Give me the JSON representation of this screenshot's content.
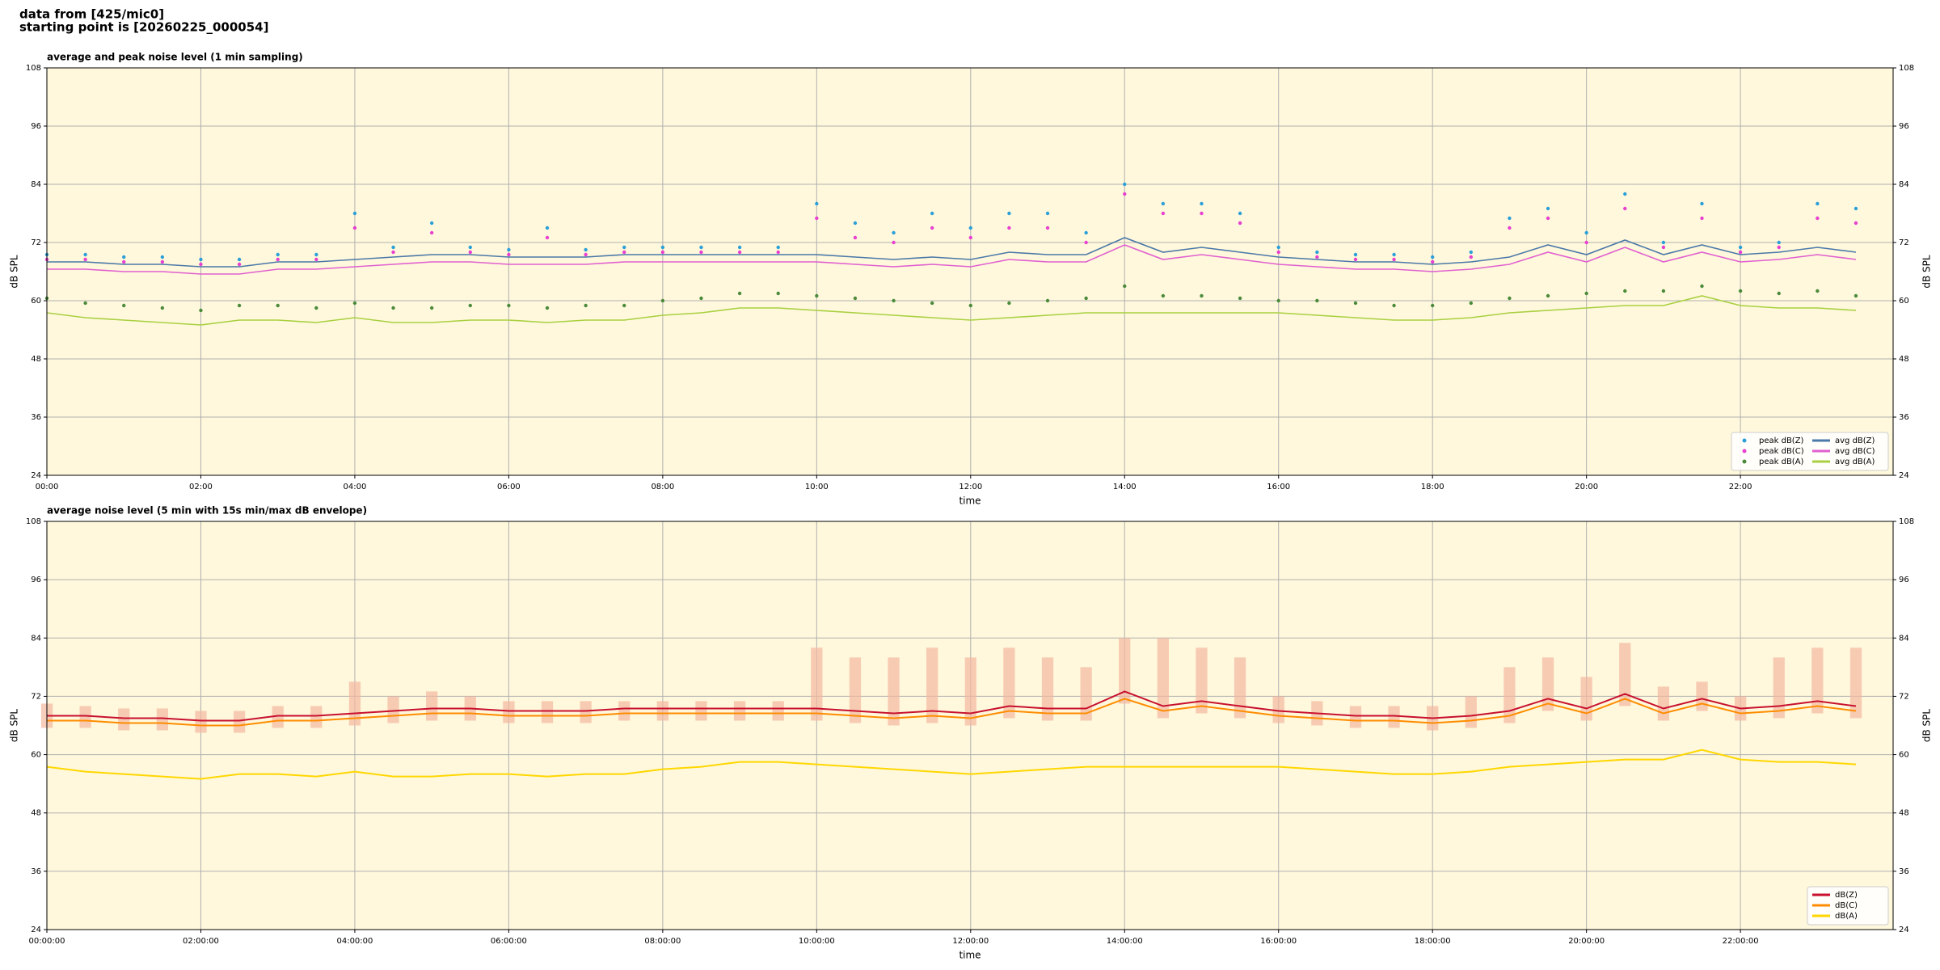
{
  "header": {
    "lines": [
      "data from [425/mic0]",
      "starting point is [20260225_000054]"
    ]
  },
  "chart_data": [
    {
      "type": "line",
      "title": "average and peak noise level (1 min sampling)",
      "xlabel": "time",
      "ylabel": "dB SPL",
      "background": "#fff8dc",
      "grid": true,
      "legend": "lower right",
      "xlim": [
        0,
        1439
      ],
      "ylim": [
        24,
        108
      ],
      "yticks": [
        24,
        36,
        48,
        60,
        72,
        84,
        96,
        108
      ],
      "xticks": [
        {
          "value": 0,
          "label": "00:00"
        },
        {
          "value": 120,
          "label": "02:00"
        },
        {
          "value": 240,
          "label": "04:00"
        },
        {
          "value": 360,
          "label": "06:00"
        },
        {
          "value": 480,
          "label": "08:00"
        },
        {
          "value": 600,
          "label": "10:00"
        },
        {
          "value": 720,
          "label": "12:00"
        },
        {
          "value": 840,
          "label": "14:00"
        },
        {
          "value": 960,
          "label": "16:00"
        },
        {
          "value": 1080,
          "label": "18:00"
        },
        {
          "value": 1200,
          "label": "20:00"
        },
        {
          "value": 1320,
          "label": "22:00"
        }
      ],
      "x": [
        0,
        30,
        60,
        90,
        120,
        150,
        180,
        210,
        240,
        270,
        300,
        330,
        360,
        390,
        420,
        450,
        480,
        510,
        540,
        570,
        600,
        630,
        660,
        690,
        720,
        750,
        780,
        810,
        840,
        870,
        900,
        930,
        960,
        990,
        1020,
        1050,
        1080,
        1110,
        1140,
        1170,
        1200,
        1230,
        1260,
        1290,
        1320,
        1350,
        1380,
        1410
      ],
      "series": [
        {
          "name": "peak dB(Z)",
          "kind": "scatter",
          "color": "#2a9fd8",
          "values": [
            69.5,
            69.5,
            69,
            69,
            68.5,
            68.5,
            69.5,
            69.5,
            78,
            71,
            76,
            71,
            70.5,
            75,
            70.5,
            71,
            71,
            71,
            71,
            71,
            80,
            76,
            74,
            78,
            75,
            78,
            78,
            74,
            84,
            80,
            80,
            78,
            71,
            70,
            69.5,
            69.5,
            69,
            70,
            77,
            79,
            74,
            82,
            72,
            80,
            71,
            72,
            80,
            79
          ]
        },
        {
          "name": "peak dB(C)",
          "kind": "scatter",
          "color": "#e83fd0",
          "values": [
            68.5,
            68.5,
            68,
            68,
            67.5,
            67.5,
            68.5,
            68.5,
            75,
            70,
            74,
            70,
            69.5,
            73,
            69.5,
            70,
            70,
            70,
            70,
            70,
            77,
            73,
            72,
            75,
            73,
            75,
            75,
            72,
            82,
            78,
            78,
            76,
            70,
            69,
            68.5,
            68.5,
            68,
            69,
            75,
            77,
            72,
            79,
            71,
            77,
            70,
            71,
            77,
            76
          ]
        },
        {
          "name": "peak dB(A)",
          "kind": "scatter",
          "color": "#4a8a3a",
          "values": [
            60.5,
            59.5,
            59,
            58.5,
            58,
            59,
            59,
            58.5,
            59.5,
            58.5,
            58.5,
            59,
            59,
            58.5,
            59,
            59,
            60,
            60.5,
            61.5,
            61.5,
            61,
            60.5,
            60,
            59.5,
            59,
            59.5,
            60,
            60.5,
            63,
            61,
            61,
            60.5,
            60,
            60,
            59.5,
            59,
            59,
            59.5,
            60.5,
            61,
            61.5,
            62,
            62,
            63,
            62,
            61.5,
            62,
            61
          ]
        },
        {
          "name": "avg dB(Z)",
          "kind": "line",
          "color": "#4a78a8",
          "values": [
            68,
            68,
            67.5,
            67.5,
            67,
            67,
            68,
            68,
            68.5,
            69,
            69.5,
            69.5,
            69,
            69,
            69,
            69.5,
            69.5,
            69.5,
            69.5,
            69.5,
            69.5,
            69,
            68.5,
            69,
            68.5,
            70,
            69.5,
            69.5,
            73,
            70,
            71,
            70,
            69,
            68.5,
            68,
            68,
            67.5,
            68,
            69,
            71.5,
            69.5,
            72.5,
            69.5,
            71.5,
            69.5,
            70,
            71,
            70
          ]
        },
        {
          "name": "avg dB(C)",
          "kind": "line",
          "color": "#e060d0",
          "values": [
            66.5,
            66.5,
            66,
            66,
            65.5,
            65.5,
            66.5,
            66.5,
            67,
            67.5,
            68,
            68,
            67.5,
            67.5,
            67.5,
            68,
            68,
            68,
            68,
            68,
            68,
            67.5,
            67,
            67.5,
            67,
            68.5,
            68,
            68,
            71.5,
            68.5,
            69.5,
            68.5,
            67.5,
            67,
            66.5,
            66.5,
            66,
            66.5,
            67.5,
            70,
            68,
            71,
            68,
            70,
            68,
            68.5,
            69.5,
            68.5
          ]
        },
        {
          "name": "avg dB(A)",
          "kind": "line",
          "color": "#a8d040",
          "values": [
            57.5,
            56.5,
            56,
            55.5,
            55,
            56,
            56,
            55.5,
            56.5,
            55.5,
            55.5,
            56,
            56,
            55.5,
            56,
            56,
            57,
            57.5,
            58.5,
            58.5,
            58,
            57.5,
            57,
            56.5,
            56,
            56.5,
            57,
            57.5,
            57.5,
            57.5,
            57.5,
            57.5,
            57.5,
            57,
            56.5,
            56,
            56,
            56.5,
            57.5,
            58,
            58.5,
            59,
            59,
            61,
            59,
            58.5,
            58.5,
            58
          ]
        }
      ]
    },
    {
      "type": "line",
      "title": "average noise level (5 min with 15s min/max dB envelope)",
      "xlabel": "time",
      "ylabel": "dB SPL",
      "background": "#fff8dc",
      "grid": true,
      "legend": "lower right",
      "xlim": [
        0,
        1439
      ],
      "ylim": [
        24,
        108
      ],
      "yticks": [
        24,
        36,
        48,
        60,
        72,
        84,
        96,
        108
      ],
      "xticks": [
        {
          "value": 0,
          "label": "00:00:00"
        },
        {
          "value": 120,
          "label": "02:00:00"
        },
        {
          "value": 240,
          "label": "04:00:00"
        },
        {
          "value": 360,
          "label": "06:00:00"
        },
        {
          "value": 480,
          "label": "08:00:00"
        },
        {
          "value": 600,
          "label": "10:00:00"
        },
        {
          "value": 720,
          "label": "12:00:00"
        },
        {
          "value": 840,
          "label": "14:00:00"
        },
        {
          "value": 960,
          "label": "16:00:00"
        },
        {
          "value": 1080,
          "label": "18:00:00"
        },
        {
          "value": 1200,
          "label": "20:00:00"
        },
        {
          "value": 1320,
          "label": "22:00:00"
        }
      ],
      "x": [
        0,
        30,
        60,
        90,
        120,
        150,
        180,
        210,
        240,
        270,
        300,
        330,
        360,
        390,
        420,
        450,
        480,
        510,
        540,
        570,
        600,
        630,
        660,
        690,
        720,
        750,
        780,
        810,
        840,
        870,
        900,
        930,
        960,
        990,
        1020,
        1050,
        1080,
        1110,
        1140,
        1170,
        1200,
        1230,
        1260,
        1290,
        1320,
        1350,
        1380,
        1410
      ],
      "envelope": {
        "color": "#f4b8a0",
        "max": [
          70.5,
          70,
          69.5,
          69.5,
          69,
          69,
          70,
          70,
          75,
          72,
          73,
          72,
          71,
          71,
          71,
          71,
          71,
          71,
          71,
          71,
          82,
          80,
          80,
          82,
          80,
          82,
          80,
          78,
          84,
          84,
          82,
          80,
          72,
          71,
          70,
          70,
          70,
          72,
          78,
          80,
          76,
          83,
          74,
          75,
          72,
          80,
          82,
          82
        ],
        "min": [
          65.5,
          65.5,
          65,
          65,
          64.5,
          64.5,
          65.5,
          65.5,
          66,
          66.5,
          67,
          67,
          66.5,
          66.5,
          66.5,
          67,
          67,
          67,
          67,
          67,
          67,
          66.5,
          66,
          66.5,
          66,
          67.5,
          67,
          67,
          70.5,
          67.5,
          68.5,
          67.5,
          66.5,
          66,
          65.5,
          65.5,
          65,
          65.5,
          66.5,
          69,
          67,
          70,
          67,
          69,
          67,
          67.5,
          68.5,
          67.5
        ]
      },
      "series": [
        {
          "name": "dB(Z)",
          "kind": "line",
          "color": "#c8102e",
          "values": [
            68,
            68,
            67.5,
            67.5,
            67,
            67,
            68,
            68,
            68.5,
            69,
            69.5,
            69.5,
            69,
            69,
            69,
            69.5,
            69.5,
            69.5,
            69.5,
            69.5,
            69.5,
            69,
            68.5,
            69,
            68.5,
            70,
            69.5,
            69.5,
            73,
            70,
            71,
            70,
            69,
            68.5,
            68,
            68,
            67.5,
            68,
            69,
            71.5,
            69.5,
            72.5,
            69.5,
            71.5,
            69.5,
            70,
            71,
            70
          ]
        },
        {
          "name": "dB(C)",
          "kind": "line",
          "color": "#ff8c00",
          "values": [
            67,
            67,
            66.5,
            66.5,
            66,
            66,
            67,
            67,
            67.5,
            68,
            68.5,
            68.5,
            68,
            68,
            68,
            68.5,
            68.5,
            68.5,
            68.5,
            68.5,
            68.5,
            68,
            67.5,
            68,
            67.5,
            69,
            68.5,
            68.5,
            71.5,
            69,
            70,
            69,
            68,
            67.5,
            67,
            67,
            66.5,
            67,
            68,
            70.5,
            68.5,
            71.5,
            68.5,
            70.5,
            68.5,
            69,
            70,
            69
          ]
        },
        {
          "name": "dB(A)",
          "kind": "line",
          "color": "#ffd700",
          "values": [
            57.5,
            56.5,
            56,
            55.5,
            55,
            56,
            56,
            55.5,
            56.5,
            55.5,
            55.5,
            56,
            56,
            55.5,
            56,
            56,
            57,
            57.5,
            58.5,
            58.5,
            58,
            57.5,
            57,
            56.5,
            56,
            56.5,
            57,
            57.5,
            57.5,
            57.5,
            57.5,
            57.5,
            57.5,
            57,
            56.5,
            56,
            56,
            56.5,
            57.5,
            58,
            58.5,
            59,
            59,
            61,
            59,
            58.5,
            58.5,
            58
          ]
        }
      ]
    }
  ]
}
